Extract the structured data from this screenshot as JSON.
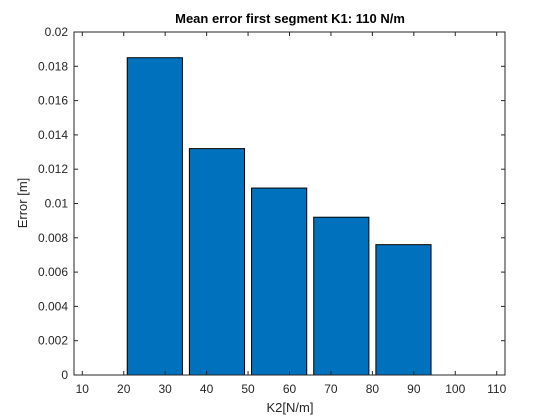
{
  "chart_data": {
    "type": "bar",
    "title": "Mean error first segment K1: 110 N/m",
    "xlabel": "K2[N/m]",
    "ylabel": "Error [m]",
    "x_ticks": [
      "10",
      "20",
      "30",
      "40",
      "50",
      "60",
      "70",
      "80",
      "90",
      "100",
      "110"
    ],
    "y_ticks": [
      "0",
      "0.002",
      "0.004",
      "0.006",
      "0.008",
      "0.01",
      "0.012",
      "0.014",
      "0.016",
      "0.018",
      "0.02"
    ],
    "xlim": [
      8,
      112
    ],
    "ylim": [
      0,
      0.02
    ],
    "bar_ranges": [
      [
        20,
        35
      ],
      [
        35,
        50
      ],
      [
        50,
        65
      ],
      [
        65,
        80
      ],
      [
        80,
        95
      ]
    ],
    "values": [
      0.0185,
      0.0132,
      0.0109,
      0.0092,
      0.0076
    ],
    "grid": false,
    "legend": "none",
    "colors": {
      "bar": "#0072BD",
      "bar_edge": "#000000",
      "axis": "#262626"
    }
  }
}
